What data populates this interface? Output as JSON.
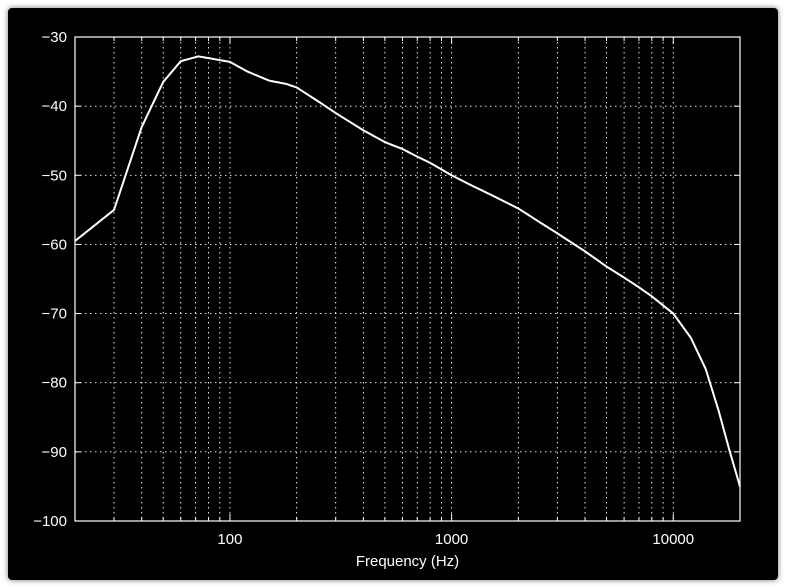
{
  "chart_data": {
    "type": "line",
    "title": "",
    "xlabel": "Frequency (Hz)",
    "ylabel": "",
    "x_scale": "log",
    "xlim": [
      20,
      20000
    ],
    "ylim": [
      -100,
      -30
    ],
    "grid": true,
    "grid_style": "dotted",
    "colors": {
      "background": "#000000",
      "line": "#ffffff",
      "grid": "#ffffff",
      "axes": "#ffffff"
    },
    "x_tick_values": [
      100,
      1000,
      10000
    ],
    "x_tick_labels": [
      "100",
      "1000",
      "10000"
    ],
    "y_tick_values": [
      -30,
      -40,
      -50,
      -60,
      -70,
      -80,
      -90,
      -100
    ],
    "y_tick_labels": [
      "−30",
      "−40",
      "−50",
      "−60",
      "−70",
      "−80",
      "−90",
      "−100"
    ],
    "series": [
      {
        "x": [
          20,
          30,
          40,
          50,
          60,
          72,
          85,
          100,
          120,
          150,
          180,
          200,
          250,
          300,
          400,
          500,
          600,
          700,
          800,
          1000,
          1200,
          1500,
          2000,
          2500,
          3000,
          4000,
          5000,
          6000,
          7000,
          8000,
          10000,
          12000,
          14000,
          16000,
          18000,
          20000
        ],
        "y": [
          -59.5,
          -55,
          -43,
          -36.5,
          -33.5,
          -32.8,
          -33.2,
          -33.6,
          -35,
          -36.3,
          -36.8,
          -37.3,
          -39.3,
          -41,
          -43.5,
          -45.2,
          -46.2,
          -47.3,
          -48.2,
          -50,
          -51.3,
          -52.8,
          -54.8,
          -56.8,
          -58.4,
          -61,
          -63.2,
          -64.8,
          -66.2,
          -67.5,
          -70,
          -73.5,
          -78,
          -84,
          -90,
          -95
        ]
      }
    ]
  }
}
